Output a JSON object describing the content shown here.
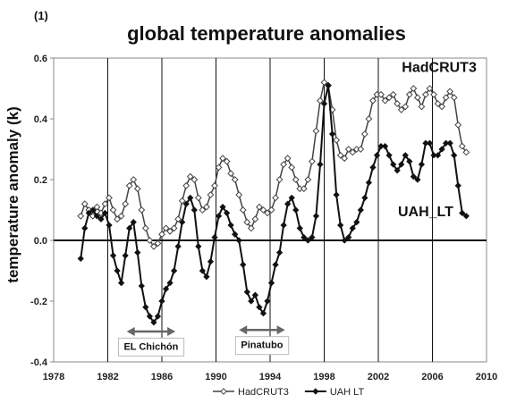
{
  "chart_data": {
    "type": "line",
    "panel_label": "(1)",
    "title": "global temperature anomalies",
    "xlabel": "",
    "ylabel": "temperature anomaly (k)",
    "xlim": [
      1978,
      2010
    ],
    "ylim": [
      -0.4,
      0.6
    ],
    "x_ticks": [
      1978,
      1982,
      1986,
      1990,
      1994,
      1998,
      2002,
      2006,
      2010
    ],
    "y_ticks": [
      -0.4,
      -0.2,
      0.0,
      0.2,
      0.4,
      0.6
    ],
    "y_tick_labels": [
      "-0.4",
      "-0.2",
      "0.0",
      "0.2",
      "0.4",
      "0.6"
    ],
    "grid": "vertical",
    "legend_position": "bottom",
    "series": [
      {
        "name": "HadCRUT3",
        "color": "#444444",
        "marker": "open-diamond",
        "points": [
          [
            1980.0,
            0.08
          ],
          [
            1980.3,
            0.12
          ],
          [
            1980.6,
            0.1
          ],
          [
            1980.9,
            0.08
          ],
          [
            1981.2,
            0.11
          ],
          [
            1981.5,
            0.09
          ],
          [
            1981.8,
            0.12
          ],
          [
            1982.1,
            0.14
          ],
          [
            1982.4,
            0.1
          ],
          [
            1982.7,
            0.07
          ],
          [
            1983.0,
            0.08
          ],
          [
            1983.3,
            0.12
          ],
          [
            1983.6,
            0.18
          ],
          [
            1983.9,
            0.2
          ],
          [
            1984.2,
            0.17
          ],
          [
            1984.5,
            0.1
          ],
          [
            1984.8,
            0.04
          ],
          [
            1985.1,
            0.0
          ],
          [
            1985.4,
            -0.02
          ],
          [
            1985.7,
            -0.01
          ],
          [
            1986.0,
            0.02
          ],
          [
            1986.3,
            0.04
          ],
          [
            1986.6,
            0.03
          ],
          [
            1986.9,
            0.04
          ],
          [
            1987.2,
            0.07
          ],
          [
            1987.5,
            0.13
          ],
          [
            1987.8,
            0.18
          ],
          [
            1988.1,
            0.21
          ],
          [
            1988.4,
            0.2
          ],
          [
            1988.7,
            0.14
          ],
          [
            1989.0,
            0.1
          ],
          [
            1989.3,
            0.11
          ],
          [
            1989.6,
            0.15
          ],
          [
            1989.9,
            0.18
          ],
          [
            1990.2,
            0.24
          ],
          [
            1990.5,
            0.27
          ],
          [
            1990.8,
            0.26
          ],
          [
            1991.1,
            0.22
          ],
          [
            1991.4,
            0.2
          ],
          [
            1991.7,
            0.15
          ],
          [
            1992.0,
            0.1
          ],
          [
            1992.3,
            0.06
          ],
          [
            1992.6,
            0.04
          ],
          [
            1992.9,
            0.07
          ],
          [
            1993.2,
            0.11
          ],
          [
            1993.5,
            0.1
          ],
          [
            1993.8,
            0.09
          ],
          [
            1994.1,
            0.1
          ],
          [
            1994.4,
            0.14
          ],
          [
            1994.7,
            0.2
          ],
          [
            1995.0,
            0.25
          ],
          [
            1995.3,
            0.27
          ],
          [
            1995.6,
            0.24
          ],
          [
            1995.9,
            0.2
          ],
          [
            1996.2,
            0.17
          ],
          [
            1996.5,
            0.17
          ],
          [
            1996.8,
            0.2
          ],
          [
            1997.1,
            0.26
          ],
          [
            1997.4,
            0.36
          ],
          [
            1997.7,
            0.46
          ],
          [
            1998.0,
            0.52
          ],
          [
            1998.3,
            0.51
          ],
          [
            1998.6,
            0.43
          ],
          [
            1998.9,
            0.33
          ],
          [
            1999.2,
            0.28
          ],
          [
            1999.5,
            0.27
          ],
          [
            1999.8,
            0.3
          ],
          [
            2000.1,
            0.29
          ],
          [
            2000.4,
            0.3
          ],
          [
            2000.7,
            0.3
          ],
          [
            2001.0,
            0.35
          ],
          [
            2001.3,
            0.4
          ],
          [
            2001.6,
            0.46
          ],
          [
            2001.9,
            0.48
          ],
          [
            2002.2,
            0.48
          ],
          [
            2002.5,
            0.46
          ],
          [
            2002.8,
            0.47
          ],
          [
            2003.1,
            0.48
          ],
          [
            2003.4,
            0.45
          ],
          [
            2003.7,
            0.43
          ],
          [
            2004.0,
            0.44
          ],
          [
            2004.3,
            0.48
          ],
          [
            2004.6,
            0.5
          ],
          [
            2004.9,
            0.47
          ],
          [
            2005.2,
            0.44
          ],
          [
            2005.5,
            0.48
          ],
          [
            2005.8,
            0.5
          ],
          [
            2006.1,
            0.48
          ],
          [
            2006.4,
            0.45
          ],
          [
            2006.7,
            0.44
          ],
          [
            2007.0,
            0.47
          ],
          [
            2007.3,
            0.49
          ],
          [
            2007.6,
            0.47
          ],
          [
            2007.9,
            0.38
          ],
          [
            2008.2,
            0.31
          ],
          [
            2008.5,
            0.29
          ]
        ]
      },
      {
        "name": "UAH_LT",
        "legend_name": "UAH LT",
        "color": "#111111",
        "marker": "filled-diamond",
        "points": [
          [
            1980.0,
            -0.06
          ],
          [
            1980.3,
            0.04
          ],
          [
            1980.6,
            0.09
          ],
          [
            1980.9,
            0.1
          ],
          [
            1981.2,
            0.08
          ],
          [
            1981.5,
            0.07
          ],
          [
            1981.8,
            0.09
          ],
          [
            1982.1,
            0.05
          ],
          [
            1982.4,
            -0.05
          ],
          [
            1982.7,
            -0.1
          ],
          [
            1983.0,
            -0.14
          ],
          [
            1983.3,
            -0.05
          ],
          [
            1983.6,
            0.04
          ],
          [
            1983.9,
            0.06
          ],
          [
            1984.2,
            -0.04
          ],
          [
            1984.5,
            -0.15
          ],
          [
            1984.8,
            -0.22
          ],
          [
            1985.1,
            -0.25
          ],
          [
            1985.4,
            -0.27
          ],
          [
            1985.7,
            -0.25
          ],
          [
            1986.0,
            -0.2
          ],
          [
            1986.3,
            -0.16
          ],
          [
            1986.6,
            -0.14
          ],
          [
            1986.9,
            -0.1
          ],
          [
            1987.2,
            -0.02
          ],
          [
            1987.5,
            0.06
          ],
          [
            1987.8,
            0.12
          ],
          [
            1988.1,
            0.14
          ],
          [
            1988.4,
            0.1
          ],
          [
            1988.7,
            -0.02
          ],
          [
            1989.0,
            -0.1
          ],
          [
            1989.3,
            -0.12
          ],
          [
            1989.6,
            -0.07
          ],
          [
            1989.9,
            0.01
          ],
          [
            1990.2,
            0.08
          ],
          [
            1990.5,
            0.11
          ],
          [
            1990.8,
            0.09
          ],
          [
            1991.1,
            0.05
          ],
          [
            1991.4,
            0.02
          ],
          [
            1991.7,
            0.0
          ],
          [
            1992.0,
            -0.08
          ],
          [
            1992.3,
            -0.17
          ],
          [
            1992.6,
            -0.2
          ],
          [
            1992.9,
            -0.18
          ],
          [
            1993.2,
            -0.22
          ],
          [
            1993.5,
            -0.24
          ],
          [
            1993.8,
            -0.2
          ],
          [
            1994.1,
            -0.14
          ],
          [
            1994.4,
            -0.08
          ],
          [
            1994.7,
            -0.04
          ],
          [
            1995.0,
            0.05
          ],
          [
            1995.3,
            0.12
          ],
          [
            1995.6,
            0.14
          ],
          [
            1995.9,
            0.1
          ],
          [
            1996.2,
            0.04
          ],
          [
            1996.5,
            0.01
          ],
          [
            1996.8,
            0.0
          ],
          [
            1997.1,
            0.01
          ],
          [
            1997.4,
            0.08
          ],
          [
            1997.7,
            0.25
          ],
          [
            1998.0,
            0.45
          ],
          [
            1998.3,
            0.51
          ],
          [
            1998.6,
            0.35
          ],
          [
            1998.9,
            0.15
          ],
          [
            1999.2,
            0.05
          ],
          [
            1999.5,
            0.0
          ],
          [
            1999.8,
            0.01
          ],
          [
            2000.1,
            0.04
          ],
          [
            2000.4,
            0.06
          ],
          [
            2000.7,
            0.1
          ],
          [
            2001.0,
            0.14
          ],
          [
            2001.3,
            0.19
          ],
          [
            2001.6,
            0.24
          ],
          [
            2001.9,
            0.28
          ],
          [
            2002.2,
            0.31
          ],
          [
            2002.5,
            0.31
          ],
          [
            2002.8,
            0.28
          ],
          [
            2003.1,
            0.25
          ],
          [
            2003.4,
            0.23
          ],
          [
            2003.7,
            0.25
          ],
          [
            2004.0,
            0.28
          ],
          [
            2004.3,
            0.26
          ],
          [
            2004.6,
            0.21
          ],
          [
            2004.9,
            0.2
          ],
          [
            2005.2,
            0.25
          ],
          [
            2005.5,
            0.32
          ],
          [
            2005.8,
            0.32
          ],
          [
            2006.1,
            0.28
          ],
          [
            2006.4,
            0.28
          ],
          [
            2006.7,
            0.3
          ],
          [
            2007.0,
            0.32
          ],
          [
            2007.3,
            0.32
          ],
          [
            2007.6,
            0.28
          ],
          [
            2007.9,
            0.18
          ],
          [
            2008.2,
            0.09
          ],
          [
            2008.5,
            0.08
          ]
        ]
      }
    ],
    "annotations": [
      {
        "text": "HadCRUT3",
        "type": "series-label",
        "x": 2006.5,
        "y": 0.555
      },
      {
        "text": "UAH_LT",
        "type": "series-label",
        "x": 2005.5,
        "y": 0.08
      },
      {
        "text": "EL Chichón",
        "type": "event",
        "arrow_from": 1983.4,
        "arrow_to": 1987.0,
        "arrow_y": -0.3,
        "label_y": -0.36
      },
      {
        "text": "Pinatubo",
        "type": "event",
        "arrow_from": 1991.7,
        "arrow_to": 1995.1,
        "arrow_y": -0.295,
        "label_y": -0.355
      }
    ]
  }
}
